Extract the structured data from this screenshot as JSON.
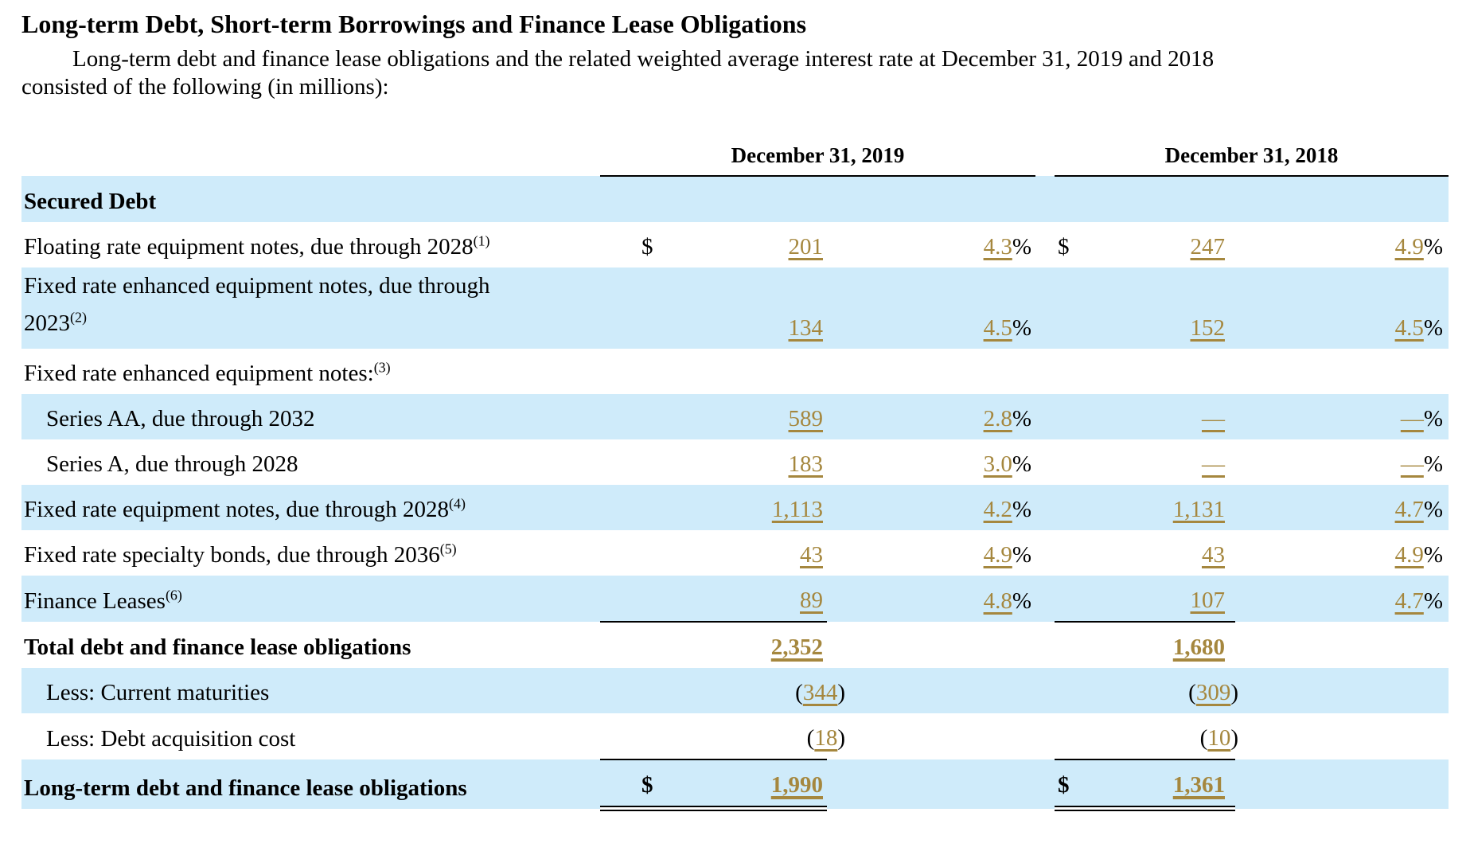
{
  "doc": {
    "title": "Long-term Debt, Short-term Borrowings and Finance Lease Obligations",
    "intro": "Long-term debt and finance lease obligations and the related weighted average interest rate at December 31, 2019 and 2018 consisted of the following (in millions):",
    "units_note": "(in millions)"
  },
  "colors": {
    "row_shade": "#CFEBFA",
    "value_link": "#A5873E",
    "text": "#000000"
  },
  "table": {
    "headers": [
      "December 31, 2019",
      "December 31, 2018"
    ],
    "rows": [
      {
        "label": "Secured Debt",
        "bold": true,
        "shade": true
      },
      {
        "label": "Floating rate equipment notes, due through 2028",
        "sup": "(1)",
        "d1": "$",
        "v1": "201",
        "p1": "4.3%",
        "d2": "$",
        "v2": "247",
        "p2": "4.9%"
      },
      {
        "label": "Fixed rate enhanced equipment notes, due through 2023",
        "sup": "(2)",
        "shade": true,
        "wrap": true,
        "v1": "134",
        "p1": "4.5%",
        "v2": "152",
        "p2": "4.5%"
      },
      {
        "label": "Fixed rate enhanced equipment notes:",
        "sup": "(3)"
      },
      {
        "label": "Series AA, due through 2032",
        "indent": true,
        "shade": true,
        "v1": "589",
        "p1": "2.8%",
        "v2": "—",
        "p2": "—%"
      },
      {
        "label": "Series A, due through 2028",
        "indent": true,
        "v1": "183",
        "p1": "3.0%",
        "v2": "—",
        "p2": "—%"
      },
      {
        "label": "Fixed rate equipment notes, due through 2028",
        "sup": "(4)",
        "shade": true,
        "v1": "1,113",
        "p1": "4.2%",
        "v2": "1,131",
        "p2": "4.7%"
      },
      {
        "label": "Fixed rate specialty bonds, due through 2036",
        "sup": "(5)",
        "v1": "43",
        "p1": "4.9%",
        "v2": "43",
        "p2": "4.9%"
      },
      {
        "label": "Finance Leases",
        "sup": "(6)",
        "shade": true,
        "v1": "89",
        "p1": "4.8%",
        "v2": "107",
        "p2": "4.7%"
      },
      {
        "label": "Total debt and finance lease obligations",
        "bold": true,
        "v1": "2,352",
        "v2": "1,680",
        "rule_top": true
      },
      {
        "label": "Less: Current maturities",
        "indent": true,
        "shade": true,
        "v1": "(344)",
        "v2": "(309)"
      },
      {
        "label": "Less: Debt acquisition cost",
        "indent": true,
        "v1": "(18)",
        "v2": "(10)"
      },
      {
        "label": "Long-term debt and finance lease obligations",
        "bold": true,
        "shade": true,
        "d1": "$",
        "v1": "1,990",
        "d2": "$",
        "v2": "1,361",
        "rule_top": true,
        "rule_bottom": "double"
      }
    ]
  }
}
